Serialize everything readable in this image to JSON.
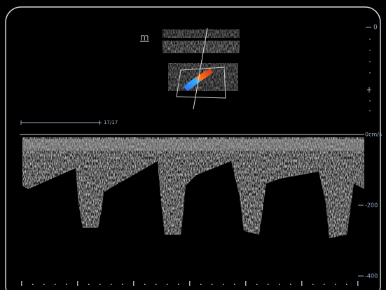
{
  "screen": {
    "marker": "m",
    "depth_label": "0",
    "frame": "17/17",
    "velocity_labels": [
      "0cm/s",
      "-200",
      "-400"
    ]
  }
}
